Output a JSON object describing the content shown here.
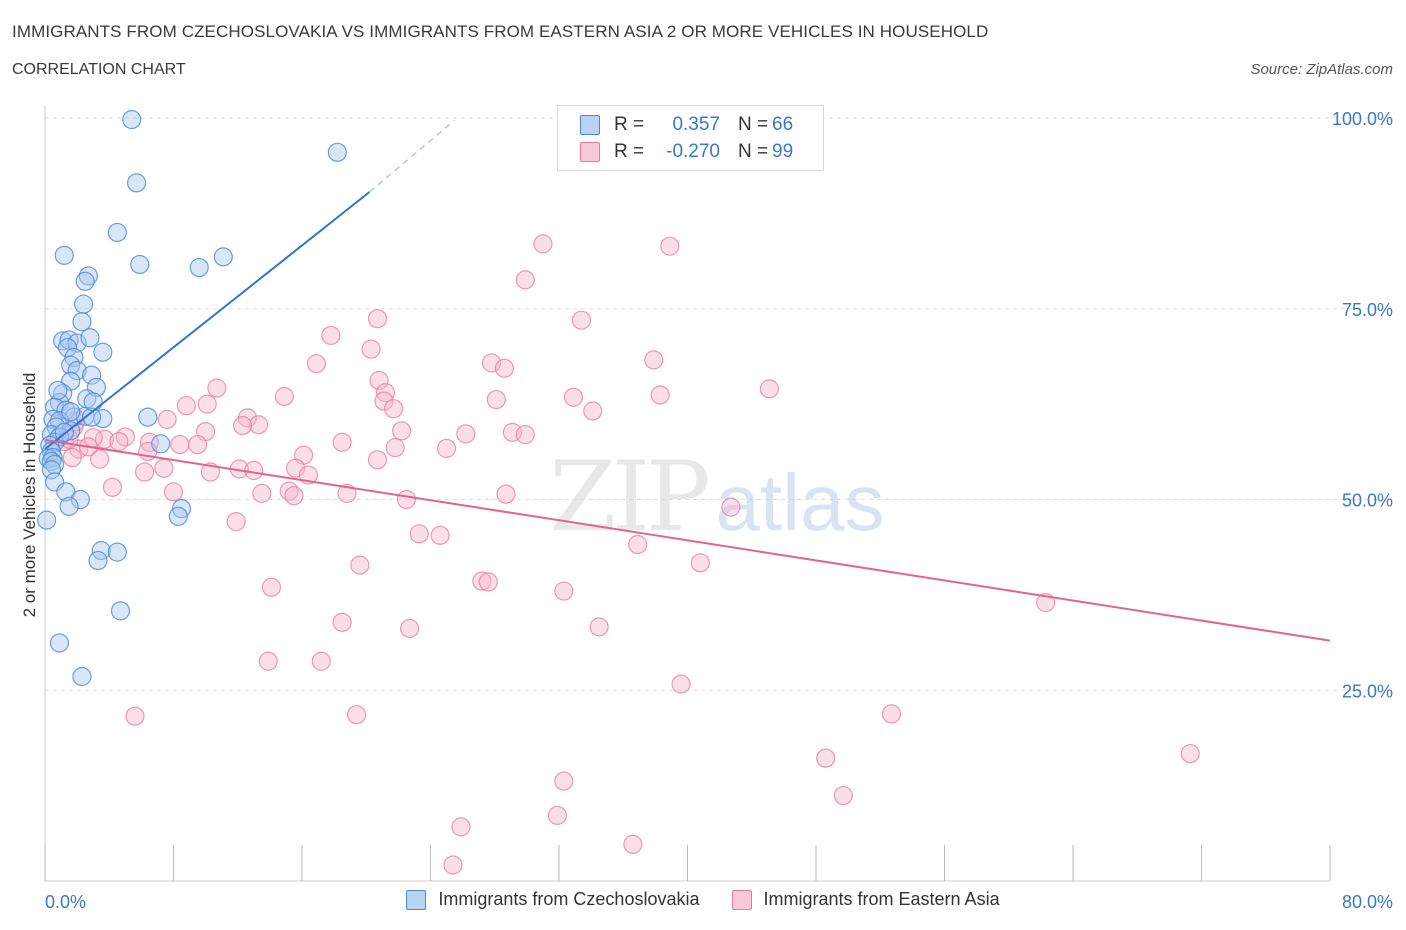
{
  "title": "IMMIGRANTS FROM CZECHOSLOVAKIA VS IMMIGRANTS FROM EASTERN ASIA 2 OR MORE VEHICLES IN HOUSEHOLD",
  "subtitle": "CORRELATION CHART",
  "source": "Source: ZipAtlas.com",
  "watermark": {
    "zip": "ZIP",
    "atlas": "atlas"
  },
  "colors": {
    "blue_fill": "#a9c8f0",
    "blue_stroke": "#4a88d8",
    "blue_line": "#2f74d0",
    "pink_fill": "#f6b7cd",
    "pink_stroke": "#e8789f",
    "pink_line": "#e0648f",
    "axis_text": "#3b78c9",
    "grid": "#dddddd"
  },
  "legend": {
    "rows": [
      {
        "r_label": "R =",
        "r_value": "0.357",
        "n_label": "N =",
        "n_value": "66"
      },
      {
        "r_label": "R =",
        "r_value": "-0.270",
        "n_label": "N =",
        "n_value": "99"
      }
    ]
  },
  "chart_data": {
    "type": "scatter",
    "xlabel": "",
    "ylabel": "2 or more Vehicles in Household",
    "xlim": [
      0,
      80
    ],
    "ylim": [
      0,
      100
    ],
    "x_tick_labels": [
      {
        "value": 0,
        "label": "0.0%"
      },
      {
        "value": 80,
        "label": "80.0%"
      }
    ],
    "x_minor_ticks": [
      0,
      8,
      16,
      24,
      32,
      40,
      48,
      56,
      64,
      72,
      80
    ],
    "y_ticks": [
      {
        "value": 25,
        "label": "25.0%"
      },
      {
        "value": 50,
        "label": "50.0%"
      },
      {
        "value": 75,
        "label": "75.0%"
      },
      {
        "value": 100,
        "label": "100.0%"
      }
    ],
    "grid": true,
    "series": [
      {
        "name": "Immigrants from Czechoslovakia",
        "color": "#4a88d8",
        "trendline": {
          "x": [
            0,
            20.2
          ],
          "y": [
            56.6,
            90.3
          ],
          "dashed_to": {
            "x": 25.5,
            "y": 99.7
          }
        },
        "points": [
          [
            5.4,
            99.8
          ],
          [
            18.2,
            95.5
          ],
          [
            5.7,
            91.5
          ],
          [
            4.5,
            85.0
          ],
          [
            1.2,
            82.0
          ],
          [
            5.9,
            80.8
          ],
          [
            9.6,
            80.4
          ],
          [
            11.1,
            81.8
          ],
          [
            2.7,
            79.3
          ],
          [
            2.5,
            78.6
          ],
          [
            2.4,
            75.6
          ],
          [
            2.3,
            73.3
          ],
          [
            1.1,
            70.8
          ],
          [
            1.5,
            70.9
          ],
          [
            2.0,
            70.5
          ],
          [
            2.8,
            71.2
          ],
          [
            1.4,
            69.9
          ],
          [
            3.6,
            69.3
          ],
          [
            1.8,
            68.6
          ],
          [
            1.6,
            67.6
          ],
          [
            2.0,
            66.9
          ],
          [
            2.9,
            66.3
          ],
          [
            1.6,
            65.5
          ],
          [
            3.2,
            64.7
          ],
          [
            1.1,
            63.9
          ],
          [
            0.9,
            62.7
          ],
          [
            2.6,
            63.2
          ],
          [
            0.6,
            62.1
          ],
          [
            1.3,
            61.7
          ],
          [
            1.8,
            60.8
          ],
          [
            2.5,
            60.9
          ],
          [
            0.5,
            60.5
          ],
          [
            3.6,
            60.6
          ],
          [
            2.9,
            60.8
          ],
          [
            0.9,
            60.3
          ],
          [
            6.4,
            60.8
          ],
          [
            0.7,
            59.5
          ],
          [
            1.6,
            59.0
          ],
          [
            0.4,
            58.5
          ],
          [
            0.9,
            58.2
          ],
          [
            0.6,
            57.5
          ],
          [
            0.3,
            57.1
          ],
          [
            0.4,
            56.3
          ],
          [
            0.2,
            55.4
          ],
          [
            0.5,
            55.5
          ],
          [
            0.4,
            55.0
          ],
          [
            0.6,
            54.6
          ],
          [
            0.4,
            53.9
          ],
          [
            7.2,
            57.3
          ],
          [
            0.6,
            52.3
          ],
          [
            1.3,
            51.0
          ],
          [
            2.2,
            50.0
          ],
          [
            1.5,
            49.1
          ],
          [
            8.5,
            48.8
          ],
          [
            8.3,
            47.8
          ],
          [
            0.1,
            47.3
          ],
          [
            3.5,
            43.3
          ],
          [
            4.5,
            43.1
          ],
          [
            3.3,
            42.0
          ],
          [
            4.7,
            35.4
          ],
          [
            0.9,
            31.2
          ],
          [
            2.3,
            26.8
          ],
          [
            1.6,
            61.5
          ],
          [
            3.0,
            62.8
          ],
          [
            0.8,
            64.3
          ],
          [
            1.2,
            58.8
          ]
        ]
      },
      {
        "name": "Immigrants from Eastern Asia",
        "color": "#e8789f",
        "trendline": {
          "x": [
            0,
            80
          ],
          "y": [
            57.8,
            31.5
          ]
        },
        "points": [
          [
            43.3,
            99.3
          ],
          [
            31.0,
            83.5
          ],
          [
            38.9,
            83.2
          ],
          [
            29.9,
            78.8
          ],
          [
            20.7,
            73.7
          ],
          [
            33.4,
            73.5
          ],
          [
            17.8,
            71.5
          ],
          [
            20.3,
            69.7
          ],
          [
            37.9,
            68.3
          ],
          [
            16.9,
            67.8
          ],
          [
            27.8,
            67.9
          ],
          [
            28.6,
            67.2
          ],
          [
            20.8,
            65.6
          ],
          [
            10.7,
            64.6
          ],
          [
            21.2,
            64.0
          ],
          [
            45.1,
            64.5
          ],
          [
            14.9,
            63.5
          ],
          [
            32.9,
            63.4
          ],
          [
            38.3,
            63.7
          ],
          [
            28.1,
            63.1
          ],
          [
            10.1,
            62.5
          ],
          [
            8.8,
            62.3
          ],
          [
            21.1,
            62.9
          ],
          [
            21.7,
            61.9
          ],
          [
            34.1,
            61.6
          ],
          [
            7.6,
            60.5
          ],
          [
            12.6,
            60.7
          ],
          [
            13.3,
            59.8
          ],
          [
            12.3,
            59.7
          ],
          [
            1.8,
            59.5
          ],
          [
            22.2,
            59.0
          ],
          [
            26.2,
            58.6
          ],
          [
            29.1,
            58.8
          ],
          [
            29.9,
            58.5
          ],
          [
            10.0,
            58.9
          ],
          [
            5.0,
            58.2
          ],
          [
            3.7,
            57.9
          ],
          [
            4.6,
            57.6
          ],
          [
            1.2,
            57.6
          ],
          [
            6.5,
            57.5
          ],
          [
            8.4,
            57.2
          ],
          [
            9.5,
            57.2
          ],
          [
            18.5,
            57.5
          ],
          [
            21.8,
            56.8
          ],
          [
            25.0,
            56.7
          ],
          [
            2.1,
            56.6
          ],
          [
            6.4,
            56.3
          ],
          [
            16.1,
            55.8
          ],
          [
            3.4,
            55.3
          ],
          [
            1.7,
            55.5
          ],
          [
            20.7,
            55.2
          ],
          [
            15.6,
            54.1
          ],
          [
            12.1,
            54.0
          ],
          [
            7.4,
            54.1
          ],
          [
            6.2,
            53.6
          ],
          [
            10.3,
            53.6
          ],
          [
            13.0,
            53.8
          ],
          [
            16.4,
            53.2
          ],
          [
            4.2,
            51.6
          ],
          [
            8.0,
            51.0
          ],
          [
            13.5,
            50.8
          ],
          [
            15.2,
            51.1
          ],
          [
            15.5,
            50.5
          ],
          [
            18.8,
            50.8
          ],
          [
            28.7,
            50.7
          ],
          [
            42.7,
            49.0
          ],
          [
            11.9,
            47.1
          ],
          [
            23.3,
            45.5
          ],
          [
            24.6,
            45.3
          ],
          [
            36.9,
            44.1
          ],
          [
            40.8,
            41.7
          ],
          [
            19.6,
            41.4
          ],
          [
            27.2,
            39.3
          ],
          [
            27.6,
            39.2
          ],
          [
            14.1,
            38.5
          ],
          [
            32.3,
            38.0
          ],
          [
            62.3,
            36.5
          ],
          [
            18.5,
            33.9
          ],
          [
            22.7,
            33.1
          ],
          [
            34.5,
            33.3
          ],
          [
            13.9,
            28.8
          ],
          [
            17.2,
            28.8
          ],
          [
            39.6,
            25.8
          ],
          [
            5.6,
            21.6
          ],
          [
            19.4,
            21.8
          ],
          [
            52.7,
            21.9
          ],
          [
            71.3,
            16.7
          ],
          [
            48.6,
            16.1
          ],
          [
            32.3,
            13.1
          ],
          [
            49.7,
            11.2
          ],
          [
            31.9,
            8.6
          ],
          [
            25.9,
            7.1
          ],
          [
            36.6,
            4.8
          ],
          [
            25.4,
            2.1
          ],
          [
            1.9,
            60.2
          ],
          [
            3.0,
            58.1
          ],
          [
            22.5,
            50.0
          ],
          [
            2.7,
            56.9
          ],
          [
            1.5,
            57.9
          ]
        ]
      }
    ]
  },
  "bottom_legend": [
    {
      "label": "Immigrants from Czechoslovakia"
    },
    {
      "label": "Immigrants from Eastern Asia"
    }
  ]
}
